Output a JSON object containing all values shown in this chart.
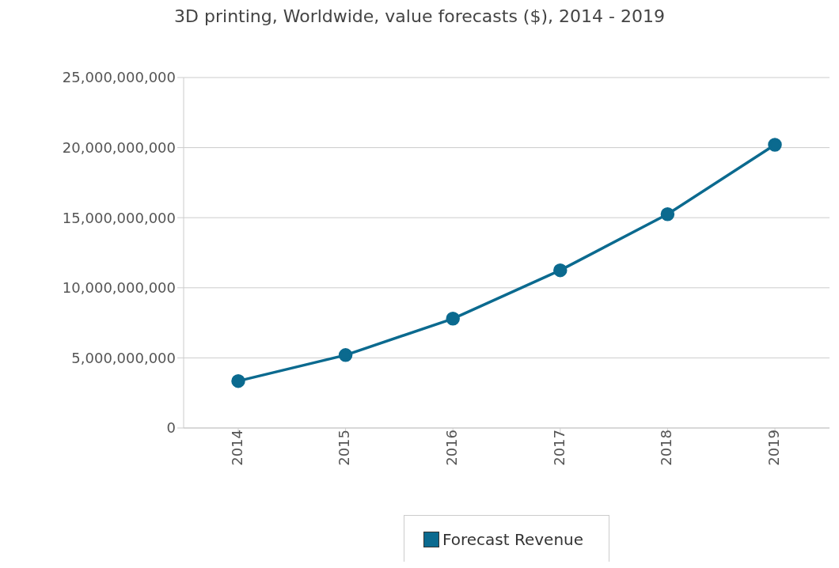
{
  "chart_data": {
    "type": "line",
    "title": "3D printing, Worldwide, value forecasts ($), 2014 - 2019",
    "categories": [
      "2014",
      "2015",
      "2016",
      "2017",
      "2018",
      "2019"
    ],
    "series": [
      {
        "name": "Forecast Revenue",
        "color": "#0b6a8f",
        "values": [
          3350000000,
          5200000000,
          7800000000,
          11250000000,
          15250000000,
          20200000000
        ]
      }
    ],
    "ylim": [
      0,
      25000000000
    ],
    "yticks": [
      0,
      {
        "value": 5000000000,
        "label": "5,000,000,000"
      },
      {
        "value": 10000000000,
        "label": "10,000,000,000"
      },
      {
        "value": 15000000000,
        "label": "15,000,000,000"
      },
      {
        "value": 20000000000,
        "label": "20,000,000,000"
      },
      {
        "value": 25000000000,
        "label": "25,000,000,000"
      }
    ],
    "grid": "y",
    "legend": "bottom",
    "marker": "circle"
  }
}
